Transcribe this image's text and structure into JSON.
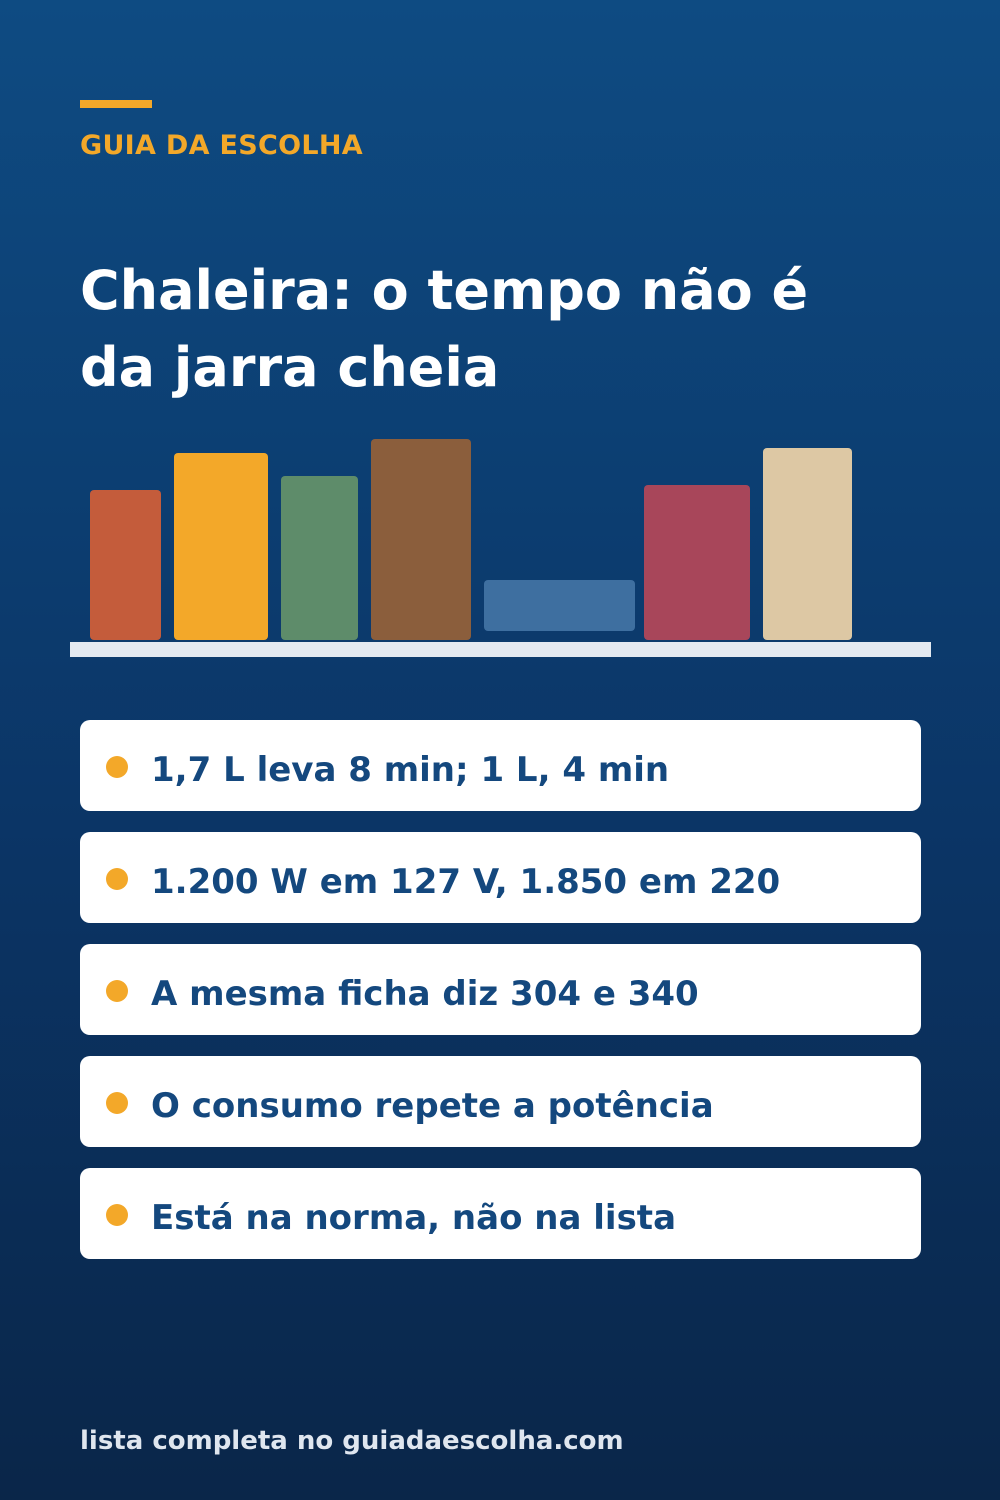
{
  "header": {
    "kicker": "GUIA DA ESCOLHA",
    "title_lines": [
      "Chaleira: o tempo não é",
      "da jarra cheia"
    ]
  },
  "illustration": {
    "books": [
      {
        "color": "#c45c3b"
      },
      {
        "color": "#f3a829"
      },
      {
        "color": "#5e8c6a"
      },
      {
        "color": "#8b5e3c"
      },
      {
        "color": "#3e6fa0"
      },
      {
        "color": "#a8465a"
      },
      {
        "color": "#ddc8a4"
      }
    ],
    "shelf_color": "#e4e9f0"
  },
  "items": [
    {
      "text": "1,7 L leva 8 min; 1 L, 4 min"
    },
    {
      "text": "1.200 W em 127 V, 1.850 em 220"
    },
    {
      "text": "A mesma ficha diz 304 e 340"
    },
    {
      "text": "O consumo repete a potência"
    },
    {
      "text": "Está na norma, não na lista"
    }
  ],
  "footer": {
    "text": "lista completa no guiadaescolha.com"
  },
  "colors": {
    "accent": "#f3a829",
    "text_dark": "#14487e",
    "background_top": "#0e4b82",
    "background_bottom": "#0a2649"
  }
}
